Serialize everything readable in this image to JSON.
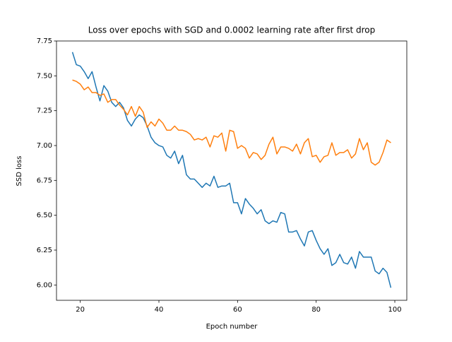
{
  "chart_data": {
    "type": "line",
    "title": "Loss over epochs with SGD and 0.0002 learning rate after first drop",
    "x_label": "Epoch number",
    "y_label": "SSD loss",
    "x": [
      18,
      19,
      20,
      21,
      22,
      23,
      24,
      25,
      26,
      27,
      28,
      29,
      30,
      31,
      32,
      33,
      34,
      35,
      36,
      37,
      38,
      39,
      40,
      41,
      42,
      43,
      44,
      45,
      46,
      47,
      48,
      49,
      50,
      51,
      52,
      53,
      54,
      55,
      56,
      57,
      58,
      59,
      60,
      61,
      62,
      63,
      64,
      65,
      66,
      67,
      68,
      69,
      70,
      71,
      72,
      73,
      74,
      75,
      76,
      77,
      78,
      79,
      80,
      81,
      82,
      83,
      84,
      85,
      86,
      87,
      88,
      89,
      90,
      91,
      92,
      93,
      94,
      95,
      96,
      97,
      98,
      99
    ],
    "series": [
      {
        "color": "#1f77b4",
        "values": [
          7.67,
          7.58,
          7.57,
          7.53,
          7.48,
          7.53,
          7.42,
          7.32,
          7.43,
          7.39,
          7.31,
          7.28,
          7.31,
          7.27,
          7.18,
          7.14,
          7.19,
          7.22,
          7.2,
          7.14,
          7.06,
          7.02,
          7.0,
          6.99,
          6.93,
          6.91,
          6.96,
          6.87,
          6.93,
          6.79,
          6.76,
          6.76,
          6.73,
          6.7,
          6.73,
          6.71,
          6.78,
          6.7,
          6.71,
          6.71,
          6.73,
          6.59,
          6.59,
          6.51,
          6.62,
          6.58,
          6.55,
          6.51,
          6.54,
          6.46,
          6.44,
          6.46,
          6.45,
          6.52,
          6.51,
          6.38,
          6.38,
          6.39,
          6.33,
          6.28,
          6.38,
          6.39,
          6.32,
          6.26,
          6.22,
          6.26,
          6.14,
          6.16,
          6.22,
          6.16,
          6.15,
          6.2,
          6.12,
          6.24,
          6.2,
          6.2,
          6.2,
          6.1,
          6.08,
          6.12,
          6.09,
          5.98
        ]
      },
      {
        "color": "#ff7f0e",
        "values": [
          7.47,
          7.46,
          7.44,
          7.4,
          7.42,
          7.38,
          7.38,
          7.36,
          7.37,
          7.31,
          7.33,
          7.33,
          7.29,
          7.26,
          7.22,
          7.28,
          7.21,
          7.28,
          7.24,
          7.13,
          7.17,
          7.14,
          7.19,
          7.16,
          7.11,
          7.11,
          7.14,
          7.11,
          7.11,
          7.1,
          7.08,
          7.04,
          7.05,
          7.04,
          7.06,
          6.99,
          7.07,
          7.06,
          7.09,
          6.96,
          7.11,
          7.1,
          6.98,
          7.0,
          6.98,
          6.91,
          6.95,
          6.94,
          6.9,
          6.93,
          7.01,
          7.06,
          6.94,
          6.99,
          6.99,
          6.98,
          6.96,
          7.01,
          6.94,
          7.02,
          7.05,
          6.92,
          6.93,
          6.88,
          6.92,
          6.93,
          7.02,
          6.93,
          6.95,
          6.95,
          6.97,
          6.91,
          6.94,
          7.05,
          6.97,
          7.02,
          6.88,
          6.86,
          6.88,
          6.95,
          7.04,
          7.02
        ]
      }
    ],
    "xlim": [
      13.95,
      103.05
    ],
    "xticks": [
      20,
      40,
      60,
      80,
      100
    ],
    "ylim": [
      5.89,
      7.75
    ],
    "yticks": [
      {
        "value": 6,
        "label": "6.00"
      },
      6.25,
      {
        "value": 6.5,
        "label": "6.50"
      },
      6.75,
      {
        "value": 7,
        "label": "7.00"
      },
      7.25,
      {
        "value": 7.5,
        "label": "7.50"
      },
      7.75
    ],
    "grid": false
  }
}
